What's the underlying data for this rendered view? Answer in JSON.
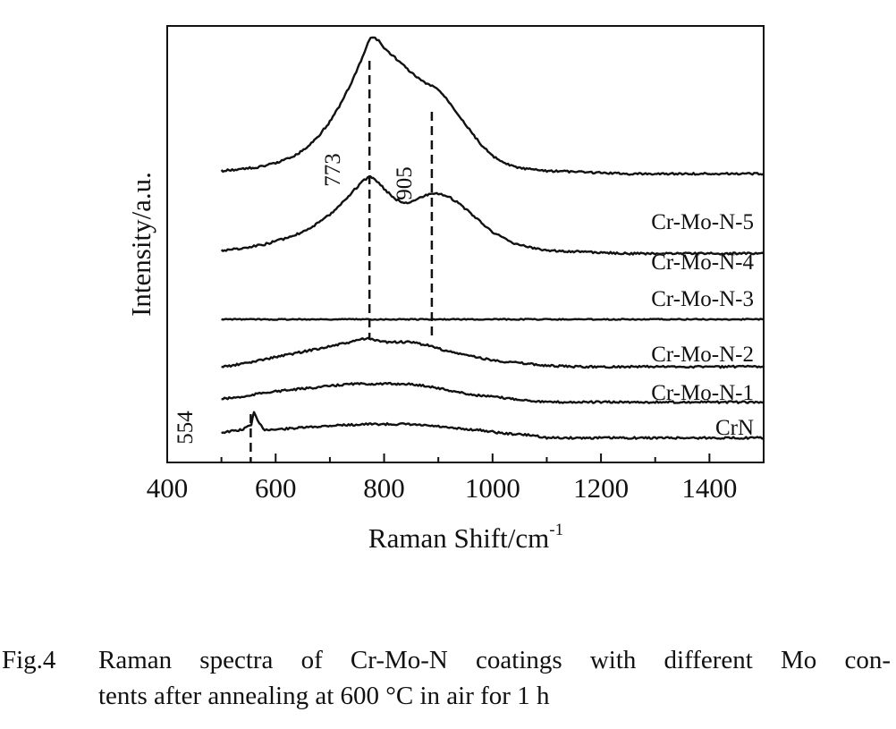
{
  "chart_data": {
    "type": "line",
    "title": "",
    "xlabel": "Raman Shift/cm",
    "xlabel_sup": "-1",
    "ylabel": "Intensity/a.u.",
    "xlim": [
      400,
      1500
    ],
    "xticks": [
      "400",
      "600",
      "800",
      "1000",
      "1200",
      "1400"
    ],
    "grid": false,
    "x": [
      500,
      520,
      540,
      555,
      560,
      570,
      580,
      600,
      620,
      640,
      660,
      680,
      700,
      720,
      740,
      760,
      770,
      775,
      780,
      790,
      800,
      820,
      840,
      860,
      880,
      900,
      920,
      940,
      960,
      980,
      1000,
      1020,
      1040,
      1060,
      1080,
      1100,
      1150,
      1200,
      1250,
      1300,
      1350,
      1400,
      1450,
      1500
    ],
    "series": [
      {
        "name": "CrN",
        "values": [
          0.4,
          0.6,
          0.8,
          1.5,
          3.0,
          1.5,
          0.8,
          0.8,
          0.9,
          1.0,
          1.1,
          1.2,
          1.3,
          1.4,
          1.4,
          1.5,
          1.5,
          1.5,
          1.5,
          1.5,
          1.5,
          1.5,
          1.5,
          1.4,
          1.3,
          1.2,
          1.0,
          0.9,
          0.8,
          0.7,
          0.5,
          0.3,
          0.2,
          0.1,
          0.0,
          -0.3,
          -0.3,
          -0.3,
          -0.3,
          -0.3,
          -0.3,
          -0.3,
          -0.3,
          -0.3
        ]
      },
      {
        "name": "Cr-Mo-N-1",
        "values": [
          0.0,
          0.1,
          0.2,
          0.3,
          0.4,
          0.5,
          0.6,
          0.7,
          0.8,
          0.9,
          1.0,
          1.1,
          1.2,
          1.3,
          1.4,
          1.4,
          1.4,
          1.4,
          1.4,
          1.4,
          1.4,
          1.4,
          1.4,
          1.3,
          1.2,
          1.0,
          0.8,
          0.6,
          0.4,
          0.3,
          0.2,
          0.1,
          0.0,
          -0.1,
          -0.2,
          -0.3,
          -0.3,
          -0.3,
          -0.3,
          -0.3,
          -0.3,
          -0.3,
          -0.3,
          -0.3
        ]
      },
      {
        "name": "Cr-Mo-N-2",
        "values": [
          0.0,
          0.1,
          0.3,
          0.4,
          0.5,
          0.6,
          0.7,
          0.9,
          1.1,
          1.3,
          1.5,
          1.7,
          1.9,
          2.1,
          2.3,
          2.6,
          2.6,
          2.6,
          2.5,
          2.4,
          2.3,
          2.3,
          2.3,
          2.2,
          2.0,
          1.7,
          1.4,
          1.2,
          1.0,
          0.8,
          0.6,
          0.5,
          0.4,
          0.3,
          0.2,
          0.1,
          0.0,
          0.0,
          0.0,
          0.0,
          0.0,
          0.0,
          0.0,
          0.0
        ]
      },
      {
        "name": "Cr-Mo-N-3",
        "values": [
          0,
          0,
          0,
          0,
          0,
          0,
          0,
          0,
          0,
          0,
          0,
          0,
          0,
          0,
          0,
          0,
          0,
          0,
          0,
          0,
          0,
          0,
          0,
          0,
          0,
          0,
          0,
          0,
          0,
          0,
          0,
          0,
          0,
          0,
          0,
          0,
          0,
          0,
          0,
          0,
          0,
          0,
          0,
          0
        ]
      },
      {
        "name": "Cr-Mo-N-4",
        "values": [
          0.0,
          0.1,
          0.2,
          0.3,
          0.4,
          0.5,
          0.6,
          0.9,
          1.2,
          1.6,
          2.1,
          2.7,
          3.5,
          4.5,
          5.6,
          6.7,
          7.1,
          7.2,
          7.0,
          6.6,
          6.0,
          5.0,
          4.6,
          5.0,
          5.4,
          5.5,
          5.2,
          4.5,
          3.6,
          2.7,
          1.8,
          1.2,
          0.7,
          0.4,
          0.2,
          0.0,
          -0.1,
          -0.2,
          -0.3,
          -0.3,
          -0.3,
          -0.3,
          -0.3,
          -0.3
        ]
      },
      {
        "name": "Cr-Mo-N-5",
        "values": [
          0.0,
          0.1,
          0.2,
          0.3,
          0.3,
          0.4,
          0.5,
          0.8,
          1.2,
          1.7,
          2.5,
          3.6,
          5.0,
          6.8,
          9.0,
          11.5,
          13.0,
          13.5,
          13.6,
          13.2,
          12.5,
          11.5,
          10.5,
          9.5,
          8.8,
          8.3,
          7.0,
          5.5,
          4.0,
          2.6,
          1.5,
          0.8,
          0.4,
          0.2,
          0.1,
          0.0,
          -0.1,
          -0.2,
          -0.3,
          -0.3,
          -0.3,
          -0.3,
          -0.3,
          -0.3
        ]
      }
    ],
    "series_labels": [
      "CrN",
      "Cr-Mo-N-1",
      "Cr-Mo-N-2",
      "Cr-Mo-N-3",
      "Cr-Mo-N-4",
      "Cr-Mo-N-5"
    ],
    "annotations": [
      {
        "text": "554",
        "x": 554
      },
      {
        "text": "773",
        "x": 773
      },
      {
        "text": "905",
        "x": 905
      }
    ],
    "line_color": "#111111"
  },
  "caption": {
    "number": "Fig.4",
    "line1": "Raman spectra of Cr-Mo-N coatings with different Mo con-",
    "line2": "tents after annealing at 600 °C in air for 1 h"
  }
}
